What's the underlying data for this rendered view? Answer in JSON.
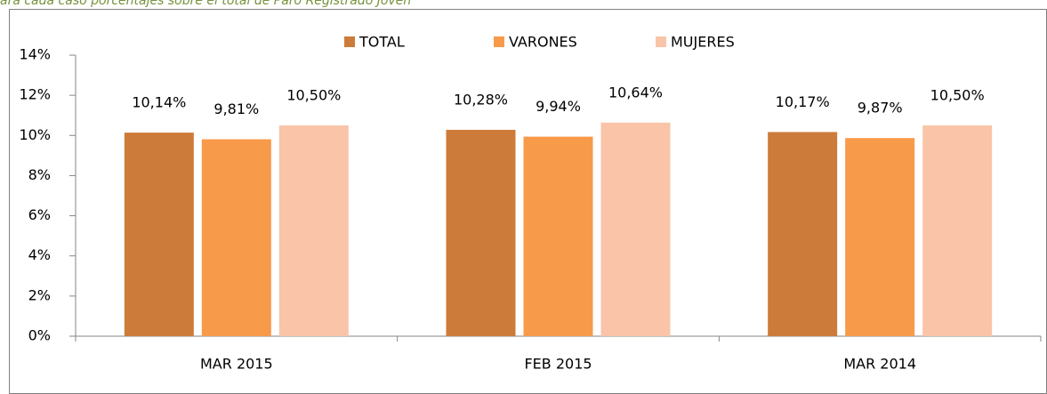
{
  "caption": "ara cada caso porcentajes sobre el total de Paro Registrado Joven",
  "chart_data": {
    "type": "bar",
    "categories": [
      "MAR 2015",
      "FEB 2015",
      "MAR 2014"
    ],
    "series": [
      {
        "name": "TOTAL",
        "color": "#cd7b3a",
        "values": [
          10.14,
          10.28,
          10.17
        ],
        "value_labels": [
          "10,14%",
          "10,28%",
          "10,17%"
        ]
      },
      {
        "name": "VARONES",
        "color": "#f79a4a",
        "values": [
          9.81,
          9.94,
          9.87
        ],
        "value_labels": [
          "9,81%",
          "9,94%",
          "9,87%"
        ]
      },
      {
        "name": "MUJERES",
        "color": "#f9c4a8",
        "values": [
          10.5,
          10.64,
          10.5
        ],
        "value_labels": [
          "10,50%",
          "10,64%",
          "10,50%"
        ]
      }
    ],
    "ylim": [
      0,
      14
    ],
    "yticks": [
      {
        "value": 0,
        "label": "0%"
      },
      {
        "value": 2,
        "label": "2%"
      },
      {
        "value": 4,
        "label": "4%"
      },
      {
        "value": 6,
        "label": "6%"
      },
      {
        "value": 8,
        "label": "8%"
      },
      {
        "value": 10,
        "label": "10%"
      },
      {
        "value": 12,
        "label": "12%"
      },
      {
        "value": 14,
        "label": "14%"
      }
    ],
    "legend": "top"
  }
}
